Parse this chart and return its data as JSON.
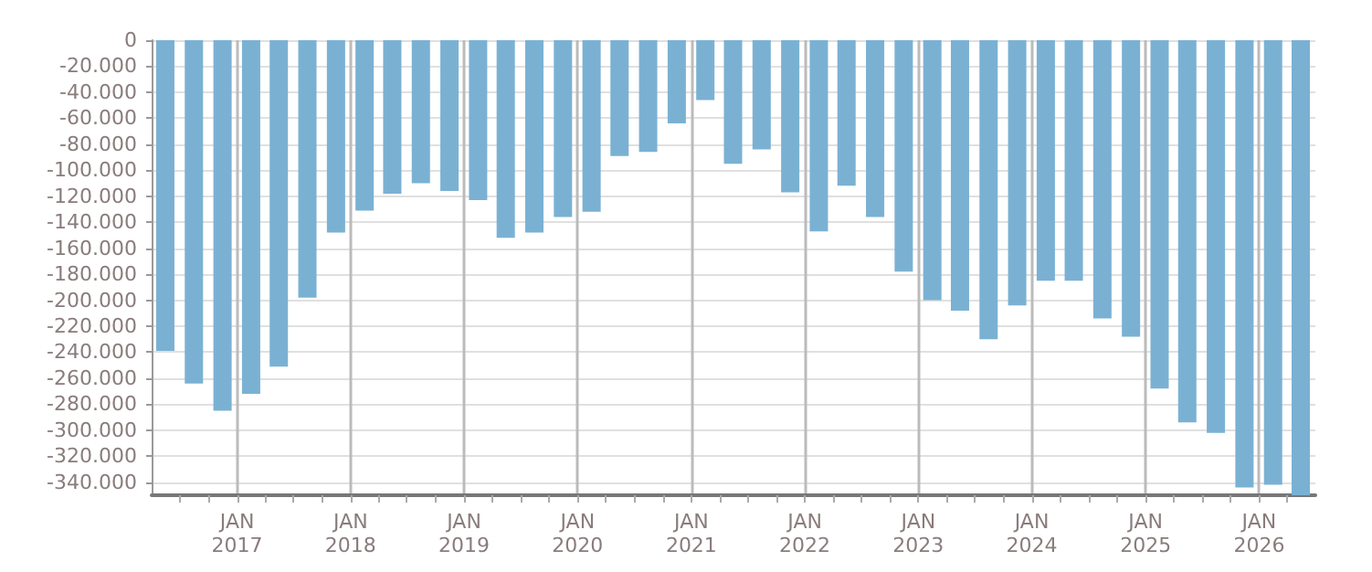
{
  "chart_data": {
    "type": "bar",
    "x": [
      "2016-05-15",
      "2016-08-15",
      "2016-11-15",
      "2017-02-15",
      "2017-05-15",
      "2017-08-15",
      "2017-11-15",
      "2018-02-15",
      "2018-05-15",
      "2018-08-15",
      "2018-11-15",
      "2019-02-15",
      "2019-05-15",
      "2019-08-15",
      "2019-11-15",
      "2020-02-15",
      "2020-05-15",
      "2020-08-15",
      "2020-11-15",
      "2021-02-15",
      "2021-05-15",
      "2021-08-15",
      "2021-11-15",
      "2022-02-15",
      "2022-05-15",
      "2022-08-15",
      "2022-11-15",
      "2023-02-15",
      "2023-05-15",
      "2023-08-15",
      "2023-11-15",
      "2024-02-15",
      "2024-05-15",
      "2024-08-15",
      "2024-11-15",
      "2025-02-15",
      "2025-05-15",
      "2025-08-15",
      "2025-11-15",
      "2026-02-15",
      "2026-05-15"
    ],
    "values": [
      -239000,
      -264000,
      -285000,
      -272000,
      -251000,
      -198000,
      -148000,
      -131000,
      -118000,
      -110000,
      -116000,
      -123000,
      -152000,
      -148000,
      -136000,
      -132000,
      -89000,
      -86000,
      -64000,
      -46000,
      -95000,
      -84000,
      -117000,
      -147000,
      -112000,
      -136000,
      -178000,
      -200000,
      -208000,
      -230000,
      -204000,
      -185000,
      -185000,
      -214000,
      -228000,
      -268000,
      -294000,
      -302000,
      -344000,
      -342000,
      -350000
    ],
    "color": "#7ab1d3",
    "xlim": [
      "2016-04",
      "2026-07"
    ],
    "xticks": [
      {
        "value": "2016-07",
        "label": null
      },
      {
        "value": "2016-10",
        "label": null
      },
      {
        "value": "2017-01",
        "label": "JAN\n2017"
      },
      {
        "value": "2017-04",
        "label": null
      },
      {
        "value": "2017-07",
        "label": null
      },
      {
        "value": "2017-10",
        "label": null
      },
      {
        "value": "2018-01",
        "label": "JAN\n2018"
      },
      {
        "value": "2018-04",
        "label": null
      },
      {
        "value": "2018-07",
        "label": null
      },
      {
        "value": "2018-10",
        "label": null
      },
      {
        "value": "2019-01",
        "label": "JAN\n2019"
      },
      {
        "value": "2019-04",
        "label": null
      },
      {
        "value": "2019-07",
        "label": null
      },
      {
        "value": "2019-10",
        "label": null
      },
      {
        "value": "2020-01",
        "label": "JAN\n2020"
      },
      {
        "value": "2020-04",
        "label": null
      },
      {
        "value": "2020-07",
        "label": null
      },
      {
        "value": "2020-10",
        "label": null
      },
      {
        "value": "2021-01",
        "label": "JAN\n2021"
      },
      {
        "value": "2021-04",
        "label": null
      },
      {
        "value": "2021-07",
        "label": null
      },
      {
        "value": "2021-10",
        "label": null
      },
      {
        "value": "2022-01",
        "label": "JAN\n2022"
      },
      {
        "value": "2022-04",
        "label": null
      },
      {
        "value": "2022-07",
        "label": null
      },
      {
        "value": "2022-10",
        "label": null
      },
      {
        "value": "2023-01",
        "label": "JAN\n2023"
      },
      {
        "value": "2023-04",
        "label": null
      },
      {
        "value": "2023-07",
        "label": null
      },
      {
        "value": "2023-10",
        "label": null
      },
      {
        "value": "2024-01",
        "label": "JAN\n2024"
      },
      {
        "value": "2024-04",
        "label": null
      },
      {
        "value": "2024-07",
        "label": null
      },
      {
        "value": "2024-10",
        "label": null
      },
      {
        "value": "2025-01",
        "label": "JAN\n2025"
      },
      {
        "value": "2025-04",
        "label": null
      },
      {
        "value": "2025-07",
        "label": null
      },
      {
        "value": "2025-10",
        "label": null
      },
      {
        "value": "2026-01",
        "label": "JAN\n2026"
      },
      {
        "value": "2026-04",
        "label": null
      }
    ],
    "ylim": [
      -350000,
      0
    ],
    "yticks": [
      {
        "value": 0,
        "label": "0"
      },
      {
        "value": -20000,
        "label": "-20.000"
      },
      {
        "value": -40000,
        "label": "-40.000"
      },
      {
        "value": -60000,
        "label": "-60.000"
      },
      {
        "value": -80000,
        "label": "-80.000"
      },
      {
        "value": -100000,
        "label": "-100.000"
      },
      {
        "value": -120000,
        "label": "-120.000"
      },
      {
        "value": -140000,
        "label": "-140.000"
      },
      {
        "value": -160000,
        "label": "-160.000"
      },
      {
        "value": -180000,
        "label": "-180.000"
      },
      {
        "value": -200000,
        "label": "-200.000"
      },
      {
        "value": -220000,
        "label": "-220.000"
      },
      {
        "value": -240000,
        "label": "-240.000"
      },
      {
        "value": -260000,
        "label": "-260.000"
      },
      {
        "value": -280000,
        "label": "-280.000"
      },
      {
        "value": -300000,
        "label": "-300.000"
      },
      {
        "value": -320000,
        "label": "-320.000"
      },
      {
        "value": -340000,
        "label": "-340.000"
      }
    ],
    "grid": true
  }
}
